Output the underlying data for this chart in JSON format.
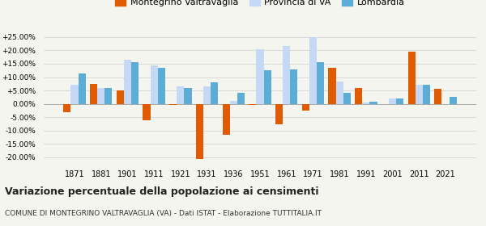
{
  "years": [
    1871,
    1881,
    1901,
    1911,
    1921,
    1931,
    1936,
    1951,
    1961,
    1971,
    1981,
    1991,
    2001,
    2011,
    2021
  ],
  "montegrino": [
    -3.0,
    7.5,
    5.0,
    -6.0,
    -0.5,
    -20.5,
    -11.5,
    -0.5,
    -7.5,
    -2.5,
    13.5,
    5.8,
    0.0,
    19.5,
    5.5
  ],
  "provincia_va": [
    7.0,
    6.0,
    16.5,
    14.5,
    6.5,
    6.5,
    1.0,
    20.5,
    21.5,
    25.0,
    8.5,
    0.5,
    2.0,
    7.0,
    0.0
  ],
  "lombardia": [
    11.5,
    6.0,
    15.5,
    13.5,
    6.0,
    8.0,
    4.0,
    12.5,
    13.0,
    15.5,
    4.0,
    0.8,
    2.0,
    7.0,
    2.5
  ],
  "color_montegrino": "#e05a00",
  "color_provincia": "#c5d8f5",
  "color_lombardia": "#5badd6",
  "title": "Variazione percentuale della popolazione ai censimenti",
  "subtitle": "COMUNE DI MONTEGRINO VALTRAVAGLIA (VA) - Dati ISTAT - Elaborazione TUTTITALIA.IT",
  "legend_labels": [
    "Montegrino Valtravaglia",
    "Provincia di VA",
    "Lombardia"
  ],
  "yticks": [
    -20,
    -15,
    -10,
    -5,
    0,
    5,
    10,
    15,
    20,
    25
  ],
  "ytick_labels": [
    "-20.00%",
    "-15.00%",
    "-10.00%",
    "-5.00%",
    "0.00%",
    "+5.00%",
    "+10.00%",
    "+15.00%",
    "+20.00%",
    "+25.00%"
  ],
  "ylim": [
    -22,
    27
  ],
  "background_color": "#f5f5f0",
  "grid_color": "#cccccc"
}
